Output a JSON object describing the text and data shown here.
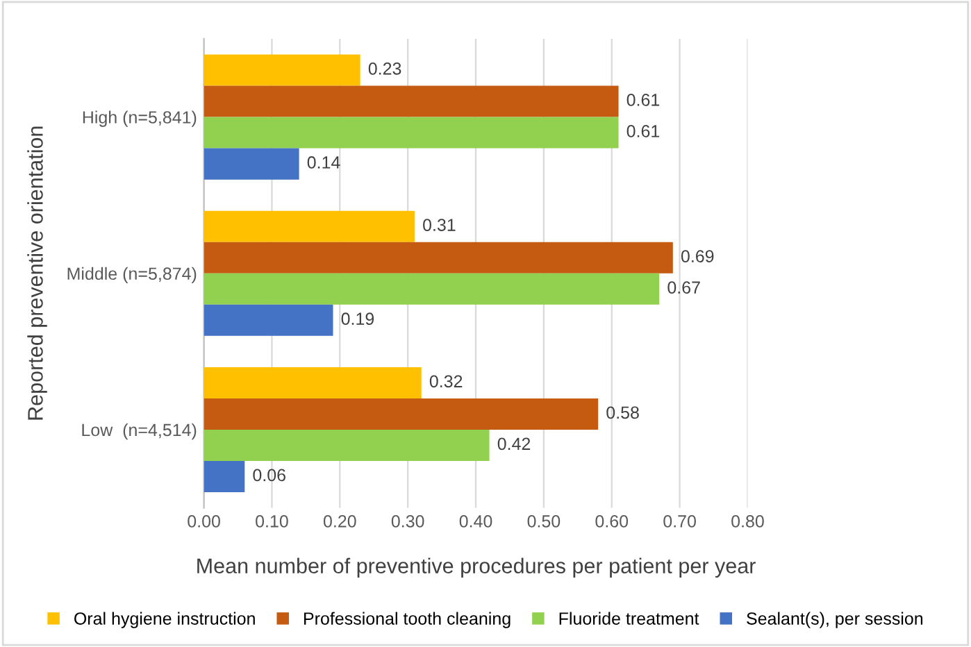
{
  "chart_data": {
    "type": "bar",
    "orientation": "horizontal",
    "xlabel": "Mean number of preventive procedures per patient per year",
    "ylabel": "Reported preventive orientation",
    "categories": [
      "High (n=5,841)",
      "Middle (n=5,874)",
      "Low  (n=4,514)"
    ],
    "series": [
      {
        "name": "Oral hygiene instruction",
        "color": "#ffc000",
        "values": [
          0.23,
          0.31,
          0.32
        ]
      },
      {
        "name": "Professional tooth cleaning",
        "color": "#c55a11",
        "values": [
          0.61,
          0.69,
          0.58
        ]
      },
      {
        "name": "Fluoride treatment",
        "color": "#92d050",
        "values": [
          0.61,
          0.67,
          0.42
        ]
      },
      {
        "name": "Sealant(s), per session",
        "color": "#4472c4",
        "values": [
          0.14,
          0.19,
          0.06
        ]
      }
    ],
    "xlim": [
      0,
      0.8
    ],
    "xticks": [
      {
        "value": 0,
        "label": "0.00"
      },
      {
        "value": 0.1,
        "label": "0.10"
      },
      {
        "value": 0.2,
        "label": "0.20"
      },
      {
        "value": 0.3,
        "label": "0.30"
      },
      {
        "value": 0.4,
        "label": "0.40"
      },
      {
        "value": 0.5,
        "label": "0.50"
      },
      {
        "value": 0.6,
        "label": "0.60"
      },
      {
        "value": 0.7,
        "label": "0.70"
      },
      {
        "value": 0.8,
        "label": "0.80"
      }
    ],
    "data_labels": true,
    "grid": "x",
    "legend": "bottom"
  }
}
